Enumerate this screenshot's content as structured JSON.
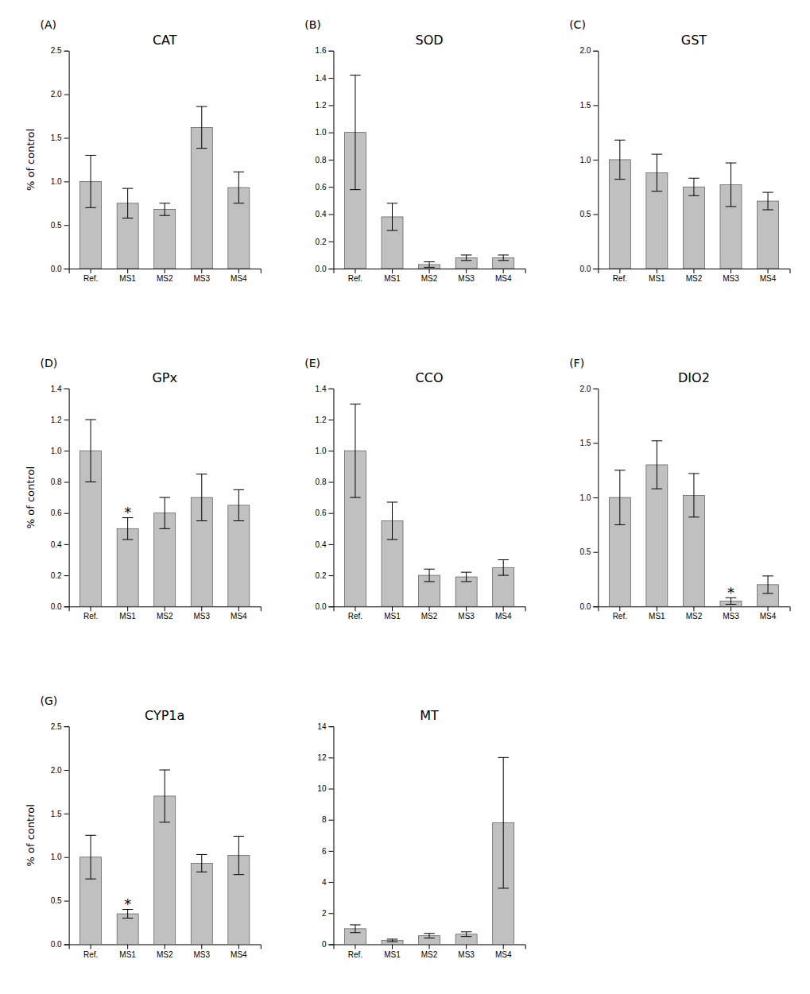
{
  "chart_data": [
    {
      "type": "bar",
      "title": "CAT",
      "label": "(A)",
      "categories": [
        "Ref.",
        "MS1",
        "MS2",
        "MS3",
        "MS4"
      ],
      "values": [
        1.0,
        0.75,
        0.68,
        1.62,
        0.93
      ],
      "errors": [
        0.3,
        0.17,
        0.07,
        0.24,
        0.18
      ],
      "color": "#c0c0c0",
      "ylim": [
        0,
        2.5
      ],
      "yticks": [
        {
          "value": 0.0,
          "label": "0.0"
        },
        0.5,
        {
          "value": 1.0,
          "label": "1.0"
        },
        1.5,
        {
          "value": 2.0,
          "label": "2.0"
        },
        2.5
      ],
      "y_label": "% of control"
    },
    {
      "type": "bar",
      "title": "SOD",
      "label": "(B)",
      "categories": [
        "Ref.",
        "MS1",
        "MS2",
        "MS3",
        "MS4"
      ],
      "values": [
        1.0,
        0.38,
        0.03,
        0.08,
        0.08
      ],
      "errors": [
        0.42,
        0.1,
        0.02,
        0.02,
        0.02
      ],
      "color": "#c0c0c0",
      "ylim": [
        0,
        1.6
      ],
      "yticks": [
        {
          "value": 0.0,
          "label": "0.0"
        },
        0.2,
        0.4,
        0.6,
        0.8,
        {
          "value": 1.0,
          "label": "1.0"
        },
        1.2,
        1.4,
        1.6
      ]
    },
    {
      "type": "bar",
      "title": "GST",
      "label": "(C)",
      "categories": [
        "Ref.",
        "MS1",
        "MS2",
        "MS3",
        "MS4"
      ],
      "values": [
        1.0,
        0.88,
        0.75,
        0.77,
        0.62
      ],
      "errors": [
        0.18,
        0.17,
        0.08,
        0.2,
        0.08
      ],
      "color": "#c0c0c0",
      "ylim": [
        0,
        2.0
      ],
      "yticks": [
        {
          "value": 0.0,
          "label": "0.0"
        },
        0.5,
        {
          "value": 1.0,
          "label": "1.0"
        },
        1.5,
        {
          "value": 2.0,
          "label": "2.0"
        }
      ]
    },
    {
      "type": "bar",
      "title": "GPx",
      "label": "(D)",
      "categories": [
        "Ref.",
        "MS1",
        "MS2",
        "MS3",
        "MS4"
      ],
      "values": [
        1.0,
        0.5,
        0.6,
        0.7,
        0.65
      ],
      "errors": [
        0.2,
        0.07,
        0.1,
        0.15,
        0.1
      ],
      "color": "#c0c0c0",
      "ylim": [
        0,
        1.4
      ],
      "yticks": [
        {
          "value": 0.0,
          "label": "0.0"
        },
        0.2,
        0.4,
        0.6,
        0.8,
        {
          "value": 1.0,
          "label": "1.0"
        },
        1.2,
        1.4
      ],
      "y_label": "% of control",
      "annotations": [
        {
          "text": "*",
          "category": "MS1"
        }
      ]
    },
    {
      "type": "bar",
      "title": "CCO",
      "label": "(E)",
      "categories": [
        "Ref.",
        "MS1",
        "MS2",
        "MS3",
        "MS4"
      ],
      "values": [
        1.0,
        0.55,
        0.2,
        0.19,
        0.25
      ],
      "errors": [
        0.3,
        0.12,
        0.04,
        0.03,
        0.05
      ],
      "color": "#c0c0c0",
      "ylim": [
        0,
        1.4
      ],
      "yticks": [
        {
          "value": 0.0,
          "label": "0.0"
        },
        0.2,
        0.4,
        0.6,
        0.8,
        {
          "value": 1.0,
          "label": "1.0"
        },
        1.2,
        1.4
      ]
    },
    {
      "type": "bar",
      "title": "DIO2",
      "label": "(F)",
      "categories": [
        "Ref.",
        "MS1",
        "MS2",
        "MS3",
        "MS4"
      ],
      "values": [
        1.0,
        1.3,
        1.02,
        0.05,
        0.2
      ],
      "errors": [
        0.25,
        0.22,
        0.2,
        0.03,
        0.08
      ],
      "color": "#c0c0c0",
      "ylim": [
        0,
        2.0
      ],
      "yticks": [
        {
          "value": 0.0,
          "label": "0.0"
        },
        0.5,
        {
          "value": 1.0,
          "label": "1.0"
        },
        1.5,
        {
          "value": 2.0,
          "label": "2.0"
        }
      ],
      "annotations": [
        {
          "text": "*",
          "category": "MS3"
        }
      ]
    },
    {
      "type": "bar",
      "title": "CYP1a",
      "label": "(G)",
      "categories": [
        "Ref.",
        "MS1",
        "MS2",
        "MS3",
        "MS4"
      ],
      "values": [
        1.0,
        0.35,
        1.7,
        0.93,
        1.02
      ],
      "errors": [
        0.25,
        0.05,
        0.3,
        0.1,
        0.22
      ],
      "color": "#c0c0c0",
      "ylim": [
        0,
        2.5
      ],
      "yticks": [
        {
          "value": 0.0,
          "label": "0.0"
        },
        0.5,
        {
          "value": 1.0,
          "label": "1.0"
        },
        1.5,
        {
          "value": 2.0,
          "label": "2.0"
        },
        2.5
      ],
      "y_label": "% of control",
      "annotations": [
        {
          "text": "*",
          "category": "MS1"
        }
      ]
    },
    {
      "type": "bar",
      "title": "MT",
      "categories": [
        "Ref.",
        "MS1",
        "MS2",
        "MS3",
        "MS4"
      ],
      "values": [
        1.0,
        0.25,
        0.55,
        0.65,
        7.8
      ],
      "errors": [
        0.25,
        0.08,
        0.15,
        0.15,
        4.2
      ],
      "color": "#c0c0c0",
      "ylim": [
        0,
        14
      ],
      "yticks": [
        0,
        2,
        4,
        6,
        8,
        10,
        12,
        14
      ]
    }
  ]
}
